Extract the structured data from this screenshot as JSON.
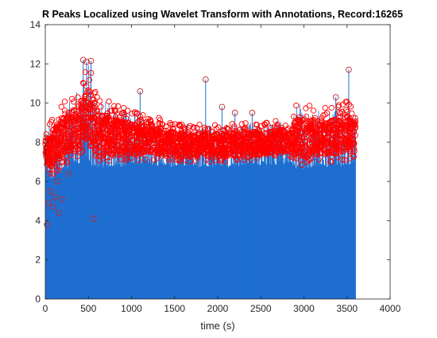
{
  "chart_data": {
    "type": "scatter",
    "title": "R Peaks Localized using Wavelet Transform with Annotations, Record:16265",
    "xlabel": "time (s)",
    "ylabel": "",
    "xlim": [
      0,
      4000
    ],
    "ylim": [
      0,
      14
    ],
    "xticks": [
      0,
      500,
      1000,
      1500,
      2000,
      2500,
      3000,
      3500,
      4000
    ],
    "yticks": [
      0,
      2,
      4,
      6,
      8,
      10,
      12,
      14
    ],
    "grid": false,
    "series": [
      {
        "style": "stem",
        "color": "#1f6fd1",
        "marker": "open-circle",
        "marker_color": "#ff0000",
        "x_range": [
          0,
          3600
        ],
        "baseline": 0,
        "envelope": {
          "x": [
            0,
            50,
            100,
            150,
            200,
            300,
            400,
            450,
            500,
            550,
            600,
            700,
            800,
            900,
            1000,
            1200,
            1500,
            1800,
            2000,
            2300,
            2600,
            2850,
            2900,
            3000,
            3200,
            3400,
            3500,
            3600
          ],
          "low": [
            6.8,
            6.3,
            6.3,
            6.6,
            6.8,
            7.0,
            7.2,
            7.6,
            7.4,
            7.0,
            6.9,
            6.9,
            7.0,
            7.0,
            7.0,
            7.1,
            7.0,
            7.0,
            7.0,
            7.0,
            7.1,
            7.2,
            6.9,
            6.8,
            7.0,
            7.0,
            7.0,
            7.2
          ],
          "high": [
            8.7,
            9.0,
            9.4,
            9.7,
            10.0,
            10.3,
            10.8,
            11.8,
            12.0,
            11.5,
            10.5,
            10.2,
            10.0,
            9.8,
            9.6,
            9.4,
            9.0,
            8.9,
            8.9,
            9.0,
            9.0,
            9.3,
            9.9,
            10.0,
            9.8,
            9.9,
            10.2,
            9.5
          ]
        },
        "outliers": [
          {
            "x": 20,
            "y": 3.8
          },
          {
            "x": 35,
            "y": 4.9
          },
          {
            "x": 60,
            "y": 5.5
          },
          {
            "x": 90,
            "y": 4.7
          },
          {
            "x": 110,
            "y": 5.2
          },
          {
            "x": 140,
            "y": 6.0
          },
          {
            "x": 160,
            "y": 4.4
          },
          {
            "x": 190,
            "y": 5.1
          },
          {
            "x": 270,
            "y": 6.4
          },
          {
            "x": 560,
            "y": 4.1
          },
          {
            "x": 440,
            "y": 12.2
          },
          {
            "x": 480,
            "y": 12.1
          },
          {
            "x": 530,
            "y": 12.15
          },
          {
            "x": 1100,
            "y": 10.6
          },
          {
            "x": 1860,
            "y": 11.2
          },
          {
            "x": 2050,
            "y": 9.8
          },
          {
            "x": 2200,
            "y": 9.5
          },
          {
            "x": 2400,
            "y": 9.5
          },
          {
            "x": 3520,
            "y": 11.7
          },
          {
            "x": 3370,
            "y": 10.3
          }
        ]
      }
    ]
  }
}
